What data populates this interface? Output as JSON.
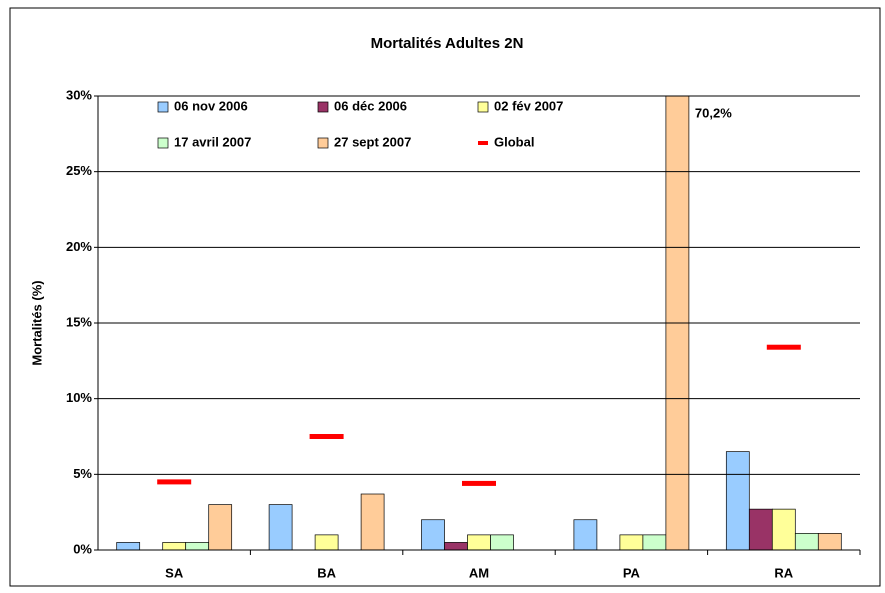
{
  "chart_data": {
    "type": "bar",
    "title": "Mortalités Adultes 2N",
    "y_label": "Mortalités (%)",
    "categories": [
      "SA",
      "BA",
      "AM",
      "PA",
      "RA"
    ],
    "series": [
      {
        "name": "06 nov 2006",
        "color": "#99ccff",
        "values": [
          0.5,
          3.0,
          2.0,
          2.0,
          6.5
        ]
      },
      {
        "name": "06 déc 2006",
        "color": "#993366",
        "values": [
          0,
          0,
          0.5,
          0,
          2.7
        ]
      },
      {
        "name": "02 fév 2007",
        "color": "#ffff99",
        "values": [
          0.5,
          1.0,
          1.0,
          1.0,
          2.7
        ]
      },
      {
        "name": "17 avril 2007",
        "color": "#ccffcc",
        "values": [
          0.5,
          0,
          1.0,
          1.0,
          1.1
        ]
      },
      {
        "name": "27 sept 2007",
        "color": "#ffcc99",
        "values": [
          3.0,
          3.7,
          0,
          70.2,
          1.1
        ],
        "value_labels": [
          null,
          null,
          null,
          "70,2%",
          null
        ]
      },
      {
        "name": "Global",
        "color": "#ff0000",
        "marker": "dash",
        "values": [
          4.5,
          7.5,
          4.4,
          null,
          13.4
        ]
      }
    ],
    "ylim": [
      0,
      30
    ],
    "yticks": [
      {
        "value": 0,
        "label": "0%"
      },
      {
        "value": 5,
        "label": "5%"
      },
      {
        "value": 10,
        "label": "10%"
      },
      {
        "value": 15,
        "label": "15%"
      },
      {
        "value": 20,
        "label": "20%"
      },
      {
        "value": 25,
        "label": "25%"
      },
      {
        "value": 30,
        "label": "30%"
      }
    ],
    "grid": true
  }
}
